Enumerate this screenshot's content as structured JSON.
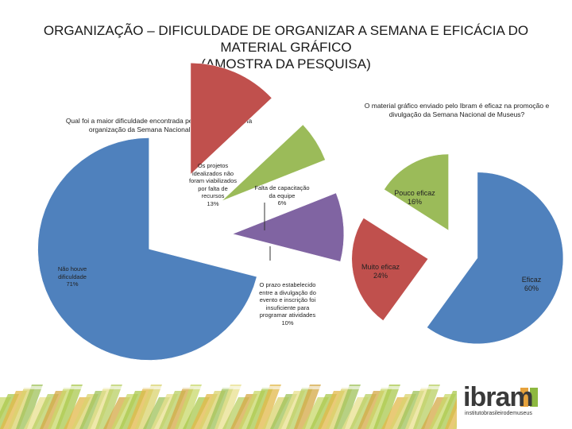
{
  "page": {
    "title_line1": "ORGANIZAÇÃO – DIFICULDADE DE ORGANIZAR A SEMANA E EFICÁCIA DO",
    "title_line2": "MATERIAL GRÁFICO",
    "subtitle": "(AMOSTRA DA PESQUISA)"
  },
  "chart_data": [
    {
      "type": "pie",
      "title": "Qual foi a maior dificuldade encontrada pela sua instituição na organização da Semana Nacional de Museus?",
      "slices": [
        {
          "label": "Os projetos idealizados não foram viabilizados por falta de recursos",
          "value": 13,
          "value_text": "13%",
          "color": "#c0504d"
        },
        {
          "label": "Falta de capacitação da equipe",
          "value": 6,
          "value_text": "6%",
          "color": "#9bbb59"
        },
        {
          "label": "O prazo estabelecido entre a divulgação do evento e inscrição foi insuficiente para programar atividades",
          "value": 10,
          "value_text": "10%",
          "color": "#8064a2"
        },
        {
          "label": "Não houve dificuldade",
          "value": 71,
          "value_text": "71%",
          "color": "#4f81bd"
        }
      ],
      "legend": "none"
    },
    {
      "type": "pie",
      "title": "O material gráfico enviado pelo Ibram é eficaz na promoção e divulgação da Semana Nacional de Museus?",
      "slices": [
        {
          "label": "Eficaz",
          "value": 60,
          "value_text": "60%",
          "color": "#4f81bd"
        },
        {
          "label": "Muito eficaz",
          "value": 24,
          "value_text": "24%",
          "color": "#c0504d"
        },
        {
          "label": "Pouco eficaz",
          "value": 16,
          "value_text": "16%",
          "color": "#9bbb59"
        }
      ],
      "legend": "none"
    }
  ],
  "labels_c1": {
    "projetos_line1": "Os projetos",
    "projetos_line2": "idealizados não",
    "projetos_line3": "foram viabilizados",
    "projetos_line4": "por falta de recursos",
    "falta_line1": "Falta de capacitação",
    "falta_line2": "da equipe",
    "prazo_line1": "O prazo estabelecido",
    "prazo_line2": "entre a divulgação do",
    "prazo_line3": "evento e inscrição foi",
    "prazo_line4": "insuficiente para",
    "prazo_line5": "programar atividades",
    "nao_line1": "Não houve",
    "nao_line2": "dificuldade"
  },
  "logo": {
    "word": "ibram",
    "tagline": "institutobrasileirodemuseus"
  }
}
